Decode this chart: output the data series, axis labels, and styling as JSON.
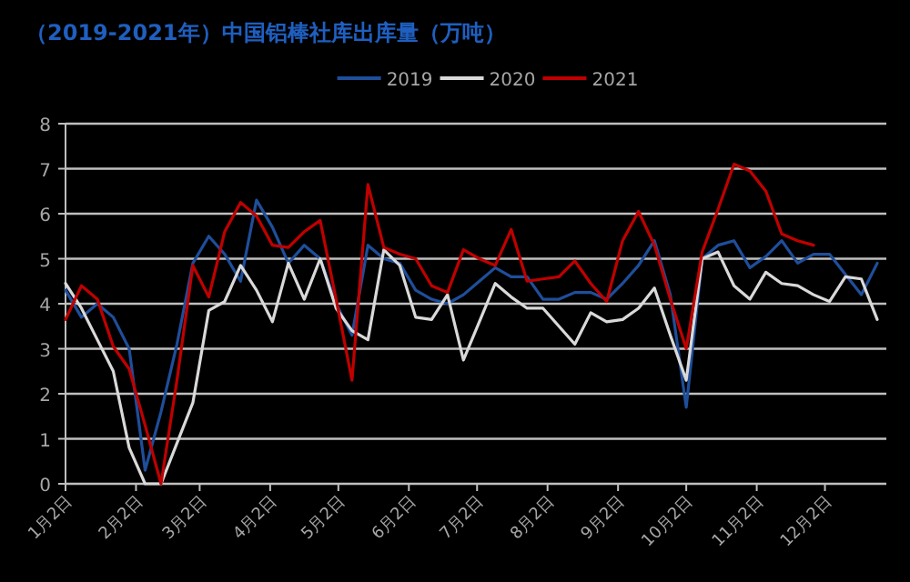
{
  "chart_data": {
    "type": "line",
    "title": "（2019-2021年）中国铝棒社库出库量（万吨）",
    "x": [
      "--01-02",
      "--01-09",
      "--01-16",
      "--01-23",
      "--01-30",
      "--02-06",
      "--02-13",
      "--02-20",
      "--02-27",
      "--03-06",
      "--03-13",
      "--03-20",
      "--03-27",
      "--04-03",
      "--04-10",
      "--04-17",
      "--04-24",
      "--05-01",
      "--05-08",
      "--05-15",
      "--05-22",
      "--05-29",
      "--06-05",
      "--06-12",
      "--06-19",
      "--06-26",
      "--07-03",
      "--07-10",
      "--07-17",
      "--07-24",
      "--07-31",
      "--08-07",
      "--08-14",
      "--08-21",
      "--08-28",
      "--09-04",
      "--09-11",
      "--09-18",
      "--09-25",
      "--10-02",
      "--10-09",
      "--10-16",
      "--10-23",
      "--10-30",
      "--11-06",
      "--11-13",
      "--11-20",
      "--11-27",
      "--12-04",
      "--12-11",
      "--12-18",
      "--12-25"
    ],
    "series": [
      {
        "name": "2019",
        "color": "#1f4e9a",
        "values": [
          4.3,
          3.7,
          4.0,
          3.7,
          3.0,
          0.3,
          1.6,
          3.1,
          4.9,
          5.5,
          5.1,
          4.5,
          6.3,
          5.7,
          4.9,
          5.3,
          5.0,
          4.0,
          3.3,
          5.3,
          5.0,
          4.9,
          4.3,
          4.1,
          4.0,
          4.2,
          4.5,
          4.8,
          4.6,
          4.6,
          4.1,
          4.1,
          4.25,
          4.25,
          4.1,
          4.45,
          4.85,
          5.4,
          4.2,
          1.7,
          5.0,
          5.3,
          5.4,
          4.8,
          5.05,
          5.4,
          4.9,
          5.1,
          5.1,
          4.65,
          4.2,
          4.9
        ]
      },
      {
        "name": "2020",
        "color": "#d9d9d9",
        "values": [
          4.45,
          3.9,
          3.2,
          2.5,
          0.8,
          0,
          0,
          0.9,
          1.8,
          3.85,
          4.05,
          4.85,
          4.3,
          3.6,
          4.9,
          4.1,
          5.0,
          3.9,
          3.4,
          3.2,
          5.2,
          4.85,
          3.7,
          3.65,
          4.2,
          2.75,
          3.6,
          4.45,
          4.15,
          3.9,
          3.9,
          3.5,
          3.1,
          3.8,
          3.6,
          3.65,
          3.9,
          4.35,
          3.3,
          2.3,
          5.0,
          5.15,
          4.4,
          4.1,
          4.7,
          4.45,
          4.4,
          4.2,
          4.05,
          4.6,
          4.55,
          3.65
        ]
      },
      {
        "name": "2021",
        "color": "#c00000",
        "x": [
          "--01-02",
          "--01-09",
          "--01-16",
          "--01-23",
          "--01-30",
          "--02-06",
          "--02-13",
          "--02-20",
          "--02-27",
          "--03-06",
          "--03-13",
          "--03-20",
          "--03-27",
          "--04-03",
          "--04-10",
          "--04-17",
          "--04-24",
          "--05-01",
          "--05-08",
          "--05-15",
          "--05-22",
          "--05-29",
          "--06-05",
          "--06-12",
          "--06-19",
          "--06-26",
          "--07-03",
          "--07-10",
          "--07-17",
          "--07-24",
          "--07-31",
          "--08-07",
          "--08-14",
          "--08-21",
          "--08-28",
          "--09-04",
          "--09-11",
          "--09-18",
          "--09-25",
          "--10-02",
          "--10-09",
          "--10-16",
          "--10-23",
          "--10-30",
          "--11-06",
          "--11-13",
          "--11-20",
          "--11-27"
        ],
        "values": [
          3.65,
          4.4,
          4.1,
          3.05,
          2.55,
          1.3,
          0,
          2.3,
          4.85,
          4.15,
          5.6,
          6.25,
          5.95,
          5.3,
          5.25,
          5.6,
          5.85,
          4.1,
          2.3,
          6.65,
          5.25,
          5.1,
          5.0,
          4.4,
          4.25,
          5.2,
          5.0,
          4.85,
          5.65,
          4.5,
          4.55,
          4.6,
          4.95,
          4.45,
          4.05,
          5.4,
          6.05,
          5.3,
          4.1,
          3.0,
          5.15,
          6.1,
          7.1,
          6.95,
          6.5,
          5.55,
          5.4,
          5.3
        ]
      }
    ],
    "xlim": [
      "--01-02",
      "--12-29"
    ],
    "xticks": [
      {
        "value": "--01-02",
        "label": "1月2日"
      },
      {
        "value": "--02-02",
        "label": "2月2日"
      },
      {
        "value": "--03-02",
        "label": "3月2日"
      },
      {
        "value": "--04-02",
        "label": "4月2日"
      },
      {
        "value": "--05-02",
        "label": "5月2日"
      },
      {
        "value": "--06-02",
        "label": "6月2日"
      },
      {
        "value": "--07-02",
        "label": "7月2日"
      },
      {
        "value": "--08-02",
        "label": "8月2日"
      },
      {
        "value": "--09-02",
        "label": "9月2日"
      },
      {
        "value": "--10-02",
        "label": "10月2日"
      },
      {
        "value": "--11-02",
        "label": "11月2日"
      },
      {
        "value": "--12-02",
        "label": "12月2日"
      }
    ],
    "ylim": [
      0,
      8
    ],
    "yticks": [
      0,
      1,
      2,
      3,
      4,
      5,
      6,
      7,
      8
    ],
    "grid": "y",
    "legend": "top",
    "marker": "none",
    "line_style": "solid"
  }
}
